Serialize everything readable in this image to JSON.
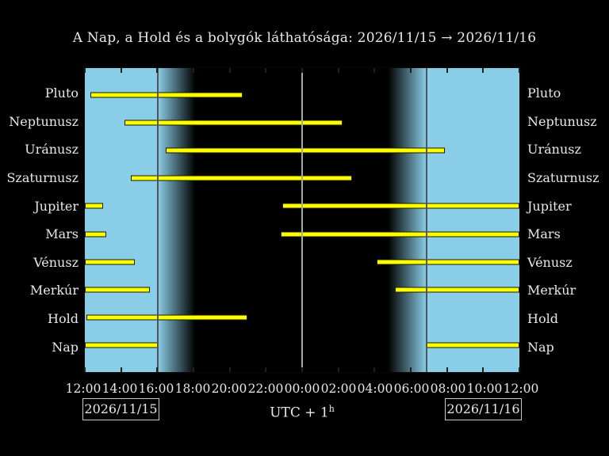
{
  "title": "A Nap, a Hold és a bolygók láthatósága: 2026/11/15 → 2026/11/16",
  "colors": {
    "background": "#000000",
    "day": "#8acde6",
    "night": "#000000",
    "bar_fill": "#ffff00",
    "bar_border": "#1a1a00",
    "boundary_line": "#4e565c",
    "midnight_line": "#a8a8a8",
    "tick": "#1f1f1f",
    "text": "#e8e8e8",
    "date_box_border": "#c8c8c8"
  },
  "footer": {
    "start_date": "2026/11/15",
    "end_date": "2026/11/16",
    "timezone": "UTC + 1",
    "timezone_sup": "h"
  },
  "chart_data": {
    "type": "gantt-visibility",
    "title": "A Nap, a Hold és a bolygók láthatósága: 2026/11/15 → 2026/11/16",
    "x_axis": {
      "start": "2026/11/15 12:00",
      "end": "2026/11/16 12:00",
      "timezone": "UTC + 1h",
      "tick_interval_hours": 2,
      "tick_labels": [
        "12:00",
        "14:00",
        "16:00",
        "18:00",
        "20:00",
        "22:00",
        "00:00",
        "02:00",
        "04:00",
        "06:00",
        "08:00",
        "10:00",
        "12:00"
      ]
    },
    "day_night": {
      "sunset_h": 4.03,
      "sunset_time": "16:02",
      "dusk_end_h": 6.1,
      "dusk_end_time": "18:06",
      "dawn_start_h": 16.74,
      "dawn_start_time": "04:44",
      "sunrise_h": 18.87,
      "sunrise_time": "06:52",
      "midnight_h": 12.0,
      "midnight_time": "00:00"
    },
    "rows": [
      {
        "label": "Pluto",
        "bars_h": [
          [
            0.3,
            8.7
          ]
        ],
        "intervals": [
          "12:18–20:42"
        ]
      },
      {
        "label": "Neptunusz",
        "bars_h": [
          [
            2.17,
            14.22
          ]
        ],
        "intervals": [
          "14:10–02:13"
        ]
      },
      {
        "label": "Uránusz",
        "bars_h": [
          [
            4.48,
            19.87
          ]
        ],
        "intervals": [
          "16:29–07:52"
        ]
      },
      {
        "label": "Szaturnusz",
        "bars_h": [
          [
            2.52,
            14.78
          ]
        ],
        "intervals": [
          "14:31–02:47"
        ]
      },
      {
        "label": "Jupiter",
        "bars_h": [
          [
            0.0,
            1.0
          ],
          [
            10.91,
            24.0
          ]
        ],
        "intervals": [
          "12:00–13:00",
          "22:55–12:00"
        ]
      },
      {
        "label": "Mars",
        "bars_h": [
          [
            0.0,
            1.17
          ],
          [
            10.83,
            24.0
          ]
        ],
        "intervals": [
          "12:00–13:10",
          "22:50–12:00"
        ]
      },
      {
        "label": "Vénusz",
        "bars_h": [
          [
            0.0,
            2.78
          ],
          [
            16.13,
            24.0
          ]
        ],
        "intervals": [
          "12:00–14:47",
          "04:08–12:00"
        ]
      },
      {
        "label": "Merkúr",
        "bars_h": [
          [
            0.0,
            3.61
          ],
          [
            17.13,
            24.0
          ]
        ],
        "intervals": [
          "12:00–15:37",
          "05:08–12:00"
        ]
      },
      {
        "label": "Hold",
        "bars_h": [
          [
            0.1,
            9.0
          ]
        ],
        "intervals": [
          "12:06–21:00"
        ]
      },
      {
        "label": "Nap",
        "bars_h": [
          [
            0.0,
            4.03
          ],
          [
            18.87,
            24.0
          ]
        ],
        "intervals": [
          "12:00–16:02",
          "06:52–12:00"
        ]
      }
    ]
  }
}
